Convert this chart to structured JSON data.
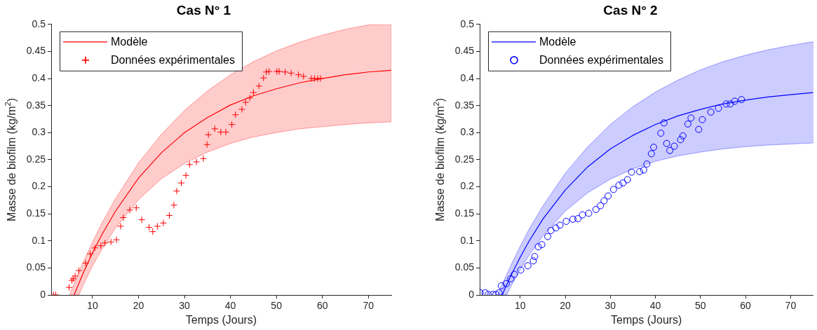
{
  "chart_data": [
    {
      "type": "line",
      "title": "Cas N° 1",
      "xlabel": "Temps (Jours)",
      "ylabel": "Masse de biofilm (kg/m$^{2}$)",
      "xlim": [
        1,
        75
      ],
      "ylim": [
        0,
        0.5
      ],
      "xticks": [
        10,
        20,
        30,
        40,
        50,
        60,
        70
      ],
      "yticks": [
        0,
        0.05,
        0.1,
        0.15,
        0.2,
        0.25,
        0.3,
        0.35,
        0.4,
        0.45,
        0.5
      ],
      "legend": "top left",
      "series": [
        {
          "name": "Modèle",
          "type": "line",
          "color": "#ff0000",
          "x": [
            5,
            6,
            7,
            8,
            10,
            12,
            15,
            20,
            25,
            30,
            35,
            40,
            45,
            50,
            55,
            60,
            65,
            70,
            75
          ],
          "values": [
            null,
            0,
            0.021,
            0.041,
            0.078,
            0.111,
            0.155,
            0.216,
            0.263,
            0.3,
            0.328,
            0.351,
            0.368,
            0.381,
            0.392,
            0.4,
            0.407,
            0.412,
            0.415
          ],
          "lower": [
            0,
            0,
            0,
            0.019,
            0.054,
            0.084,
            0.124,
            0.176,
            0.215,
            0.243,
            0.264,
            0.28,
            0.292,
            0.3,
            0.307,
            0.311,
            0.315,
            0.318,
            0.32
          ],
          "upper": [
            0,
            0.021,
            0.042,
            0.061,
            0.098,
            0.132,
            0.178,
            0.244,
            0.297,
            0.341,
            0.377,
            0.407,
            0.431,
            0.451,
            0.467,
            0.48,
            0.491,
            0.499,
            0.5
          ]
        },
        {
          "name": "Données expérimentales",
          "type": "scatter",
          "marker": "cross",
          "color": "#ff0000",
          "x": [
            1.5,
            2,
            4.9,
            5.5,
            5.8,
            6.2,
            7,
            8.5,
            9.5,
            10.5,
            11.8,
            12.7,
            14,
            15.2,
            16.1,
            16.7,
            18.1,
            19.5,
            20.7,
            22.3,
            23.1,
            24.1,
            25.4,
            26.7,
            27.7,
            28.3,
            29.3,
            30.3,
            31.1,
            32.6,
            34.1,
            34.9,
            35.2,
            36.6,
            37.9,
            39,
            40.3,
            41.1,
            42.5,
            43.3,
            44.2,
            45,
            46.2,
            47.2,
            47.8,
            48.4,
            50.1,
            50.6,
            51.9,
            53.2,
            54.8,
            55.9,
            57.6,
            58.3,
            59,
            59.6
          ],
          "values": [
            0,
            0,
            0.014,
            0.027,
            0.03,
            0.035,
            0.045,
            0.059,
            0.076,
            0.087,
            0.091,
            0.096,
            0.098,
            0.102,
            0.127,
            0.143,
            0.157,
            0.161,
            0.139,
            0.125,
            0.117,
            0.127,
            0.133,
            0.147,
            0.166,
            0.192,
            0.207,
            0.221,
            0.241,
            0.246,
            0.252,
            0.278,
            0.296,
            0.307,
            0.301,
            0.301,
            0.315,
            0.333,
            0.343,
            0.356,
            0.364,
            0.374,
            0.386,
            0.401,
            0.412,
            0.413,
            0.413,
            0.413,
            0.412,
            0.41,
            0.407,
            0.404,
            0.4,
            0.4,
            0.4,
            0.4
          ]
        }
      ]
    },
    {
      "type": "line",
      "title": "Cas N° 2",
      "xlabel": "Temps (Jours)",
      "ylabel": "Masse de biofilm (kg/m$^{2}$)",
      "xlim": [
        1,
        75
      ],
      "ylim": [
        0,
        0.5
      ],
      "xticks": [
        10,
        20,
        30,
        40,
        50,
        60,
        70
      ],
      "yticks": [
        0,
        0.05,
        0.1,
        0.15,
        0.2,
        0.25,
        0.3,
        0.35,
        0.4,
        0.45,
        0.5
      ],
      "legend": "top left",
      "series": [
        {
          "name": "Modèle",
          "type": "line",
          "color": "#0000ff",
          "x": [
            5,
            6,
            7,
            8,
            10,
            12,
            15,
            20,
            25,
            30,
            35,
            40,
            45,
            50,
            55,
            60,
            65,
            70,
            75
          ],
          "values": [
            null,
            0,
            0.019,
            0.037,
            0.07,
            0.1,
            0.14,
            0.194,
            0.237,
            0.27,
            0.295,
            0.315,
            0.331,
            0.343,
            0.353,
            0.36,
            0.366,
            0.37,
            0.374
          ],
          "lower": [
            0,
            0,
            0,
            0.017,
            0.047,
            0.074,
            0.109,
            0.155,
            0.189,
            0.214,
            0.233,
            0.247,
            0.257,
            0.264,
            0.27,
            0.274,
            0.277,
            0.279,
            0.281
          ],
          "upper": [
            0,
            0.02,
            0.038,
            0.056,
            0.09,
            0.122,
            0.164,
            0.225,
            0.274,
            0.315,
            0.348,
            0.375,
            0.397,
            0.416,
            0.431,
            0.443,
            0.453,
            0.461,
            0.468
          ]
        },
        {
          "name": "Données expérimentales",
          "type": "scatter",
          "marker": "circle",
          "color": "#0000ff",
          "x": [
            1.1,
            2.2,
            2.9,
            3.9,
            4.6,
            5.3,
            5.8,
            6.9,
            7.9,
            8.7,
            10.1,
            11.7,
            12.9,
            13.2,
            14,
            14.8,
            16.1,
            16.8,
            17.9,
            18.8,
            20.2,
            21.7,
            22.8,
            23.8,
            25.2,
            26.8,
            27.8,
            28.6,
            29.5,
            30.7,
            31.9,
            32.8,
            33.8,
            34.7,
            36.5,
            37.4,
            38.1,
            39.1,
            39.6,
            41.2,
            41.9,
            42.5,
            43.2,
            44.2,
            45.6,
            46.1,
            47.2,
            47.9,
            49.6,
            50.4,
            52.3,
            54,
            55.7,
            56.6,
            57.6,
            59.1
          ],
          "values": [
            0.004,
            0.004,
            0.001,
            0.001,
            0.001,
            0.004,
            0.017,
            0.021,
            0.03,
            0.038,
            0.046,
            0.054,
            0.063,
            0.071,
            0.089,
            0.093,
            0.108,
            0.119,
            0.124,
            0.129,
            0.136,
            0.14,
            0.141,
            0.148,
            0.151,
            0.158,
            0.165,
            0.174,
            0.183,
            0.195,
            0.203,
            0.207,
            0.213,
            0.227,
            0.228,
            0.231,
            0.242,
            0.261,
            0.273,
            0.299,
            0.318,
            0.28,
            0.267,
            0.275,
            0.287,
            0.294,
            0.316,
            0.327,
            0.306,
            0.324,
            0.338,
            0.345,
            0.353,
            0.353,
            0.358,
            0.361
          ]
        }
      ]
    }
  ]
}
